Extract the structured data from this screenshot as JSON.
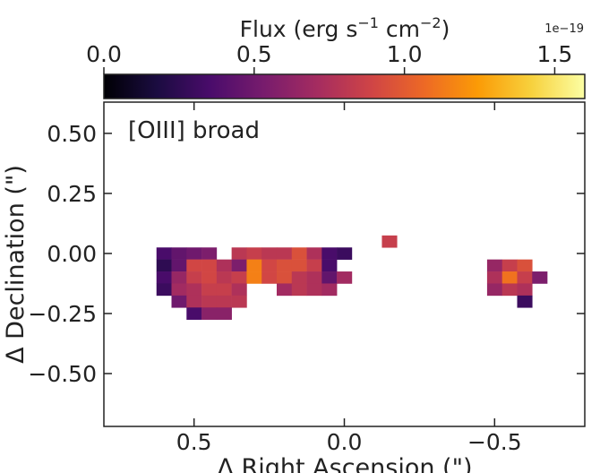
{
  "chart_data": {
    "type": "heatmap",
    "title": "",
    "annotation": "[OIII] broad",
    "xlabel": "Δ Right Ascension (\")",
    "ylabel": "Δ Declination (\")",
    "xlim": [
      0.8,
      -0.8
    ],
    "ylim": [
      -0.72,
      0.63
    ],
    "x_ticks": [
      0.5,
      0.0,
      -0.5
    ],
    "x_tick_labels": [
      "0.5",
      "0.0",
      "−0.5"
    ],
    "y_ticks": [
      0.5,
      0.25,
      0.0,
      -0.25,
      -0.5
    ],
    "y_tick_labels": [
      "0.50",
      "0.25",
      "0.00",
      "−0.25",
      "−0.50"
    ],
    "pixel_size": 0.05,
    "colorbar": {
      "label": "Flux (erg s⁻¹ cm⁻²)",
      "label_main": "Flux (erg s",
      "label_exp1": "−1",
      "label_mid": " cm",
      "label_exp2": "−2",
      "label_end": ")",
      "scale_label": "1e−19",
      "min": 0.0,
      "max": 1.6,
      "ticks": [
        0.0,
        0.5,
        1.0,
        1.5
      ],
      "tick_labels": [
        "0.0",
        "0.5",
        "1.0",
        "1.5"
      ],
      "cmap": "inferno"
    },
    "pixels": [
      {
        "x": -0.15,
        "y": 0.05,
        "v": 0.85
      },
      {
        "x": 0.6,
        "y": 0.0,
        "v": 0.35
      },
      {
        "x": 0.55,
        "y": 0.0,
        "v": 0.45
      },
      {
        "x": 0.5,
        "y": 0.0,
        "v": 0.5
      },
      {
        "x": 0.45,
        "y": 0.0,
        "v": 0.55
      },
      {
        "x": 0.35,
        "y": 0.0,
        "v": 0.8
      },
      {
        "x": 0.3,
        "y": 0.0,
        "v": 0.85
      },
      {
        "x": 0.25,
        "y": 0.0,
        "v": 0.8
      },
      {
        "x": 0.2,
        "y": 0.0,
        "v": 0.8
      },
      {
        "x": 0.15,
        "y": 0.0,
        "v": 0.95
      },
      {
        "x": 0.1,
        "y": 0.0,
        "v": 0.75
      },
      {
        "x": 0.05,
        "y": 0.0,
        "v": 0.35
      },
      {
        "x": 0.0,
        "y": 0.0,
        "v": 0.3
      },
      {
        "x": 0.6,
        "y": -0.05,
        "v": 0.25
      },
      {
        "x": 0.55,
        "y": -0.05,
        "v": 0.45
      },
      {
        "x": 0.5,
        "y": -0.05,
        "v": 0.9
      },
      {
        "x": 0.45,
        "y": -0.05,
        "v": 0.9
      },
      {
        "x": 0.4,
        "y": -0.05,
        "v": 0.75
      },
      {
        "x": 0.35,
        "y": -0.05,
        "v": 0.55
      },
      {
        "x": 0.3,
        "y": -0.05,
        "v": 1.15
      },
      {
        "x": 0.25,
        "y": -0.05,
        "v": 0.9
      },
      {
        "x": 0.2,
        "y": -0.05,
        "v": 0.95
      },
      {
        "x": 0.15,
        "y": -0.05,
        "v": 0.95
      },
      {
        "x": 0.1,
        "y": -0.05,
        "v": 0.85
      },
      {
        "x": 0.05,
        "y": -0.05,
        "v": 0.35
      },
      {
        "x": -0.5,
        "y": -0.05,
        "v": 0.65
      },
      {
        "x": -0.55,
        "y": -0.05,
        "v": 0.85
      },
      {
        "x": -0.6,
        "y": -0.05,
        "v": 0.95
      },
      {
        "x": 0.6,
        "y": -0.1,
        "v": 0.35
      },
      {
        "x": 0.55,
        "y": -0.1,
        "v": 0.65
      },
      {
        "x": 0.5,
        "y": -0.1,
        "v": 0.85
      },
      {
        "x": 0.45,
        "y": -0.1,
        "v": 0.9
      },
      {
        "x": 0.4,
        "y": -0.1,
        "v": 0.8
      },
      {
        "x": 0.35,
        "y": -0.1,
        "v": 0.85
      },
      {
        "x": 0.3,
        "y": -0.1,
        "v": 1.15
      },
      {
        "x": 0.25,
        "y": -0.1,
        "v": 0.9
      },
      {
        "x": 0.2,
        "y": -0.1,
        "v": 0.95
      },
      {
        "x": 0.15,
        "y": -0.1,
        "v": 0.8
      },
      {
        "x": 0.1,
        "y": -0.1,
        "v": 0.75
      },
      {
        "x": 0.05,
        "y": -0.1,
        "v": 0.45
      },
      {
        "x": 0.0,
        "y": -0.1,
        "v": 0.7
      },
      {
        "x": -0.5,
        "y": -0.1,
        "v": 0.75
      },
      {
        "x": -0.55,
        "y": -0.1,
        "v": 1.1
      },
      {
        "x": -0.6,
        "y": -0.1,
        "v": 0.85
      },
      {
        "x": -0.65,
        "y": -0.1,
        "v": 0.55
      },
      {
        "x": 0.6,
        "y": -0.15,
        "v": 0.3
      },
      {
        "x": 0.55,
        "y": -0.15,
        "v": 0.7
      },
      {
        "x": 0.5,
        "y": -0.15,
        "v": 0.75
      },
      {
        "x": 0.45,
        "y": -0.15,
        "v": 0.85
      },
      {
        "x": 0.4,
        "y": -0.15,
        "v": 0.85
      },
      {
        "x": 0.35,
        "y": -0.15,
        "v": 0.75
      },
      {
        "x": 0.2,
        "y": -0.15,
        "v": 0.7
      },
      {
        "x": 0.15,
        "y": -0.15,
        "v": 0.8
      },
      {
        "x": 0.1,
        "y": -0.15,
        "v": 0.75
      },
      {
        "x": 0.05,
        "y": -0.15,
        "v": 0.7
      },
      {
        "x": -0.5,
        "y": -0.15,
        "v": 0.65
      },
      {
        "x": -0.55,
        "y": -0.15,
        "v": 0.8
      },
      {
        "x": -0.6,
        "y": -0.15,
        "v": 0.75
      },
      {
        "x": 0.55,
        "y": -0.2,
        "v": 0.5
      },
      {
        "x": 0.5,
        "y": -0.2,
        "v": 0.75
      },
      {
        "x": 0.45,
        "y": -0.2,
        "v": 0.8
      },
      {
        "x": 0.4,
        "y": -0.2,
        "v": 0.8
      },
      {
        "x": 0.35,
        "y": -0.2,
        "v": 0.8
      },
      {
        "x": -0.6,
        "y": -0.2,
        "v": 0.3
      },
      {
        "x": 0.5,
        "y": -0.25,
        "v": 0.35
      },
      {
        "x": 0.45,
        "y": -0.25,
        "v": 0.6
      },
      {
        "x": 0.4,
        "y": -0.25,
        "v": 0.6
      }
    ]
  },
  "colors": {
    "frame": "#222222",
    "background": "#ffffff",
    "inferno_stops": [
      "#000004",
      "#1b0c41",
      "#4a0c6b",
      "#781c6d",
      "#a52c60",
      "#cf4446",
      "#ed6925",
      "#fb9b06",
      "#f7d13d",
      "#fcffa4"
    ]
  }
}
